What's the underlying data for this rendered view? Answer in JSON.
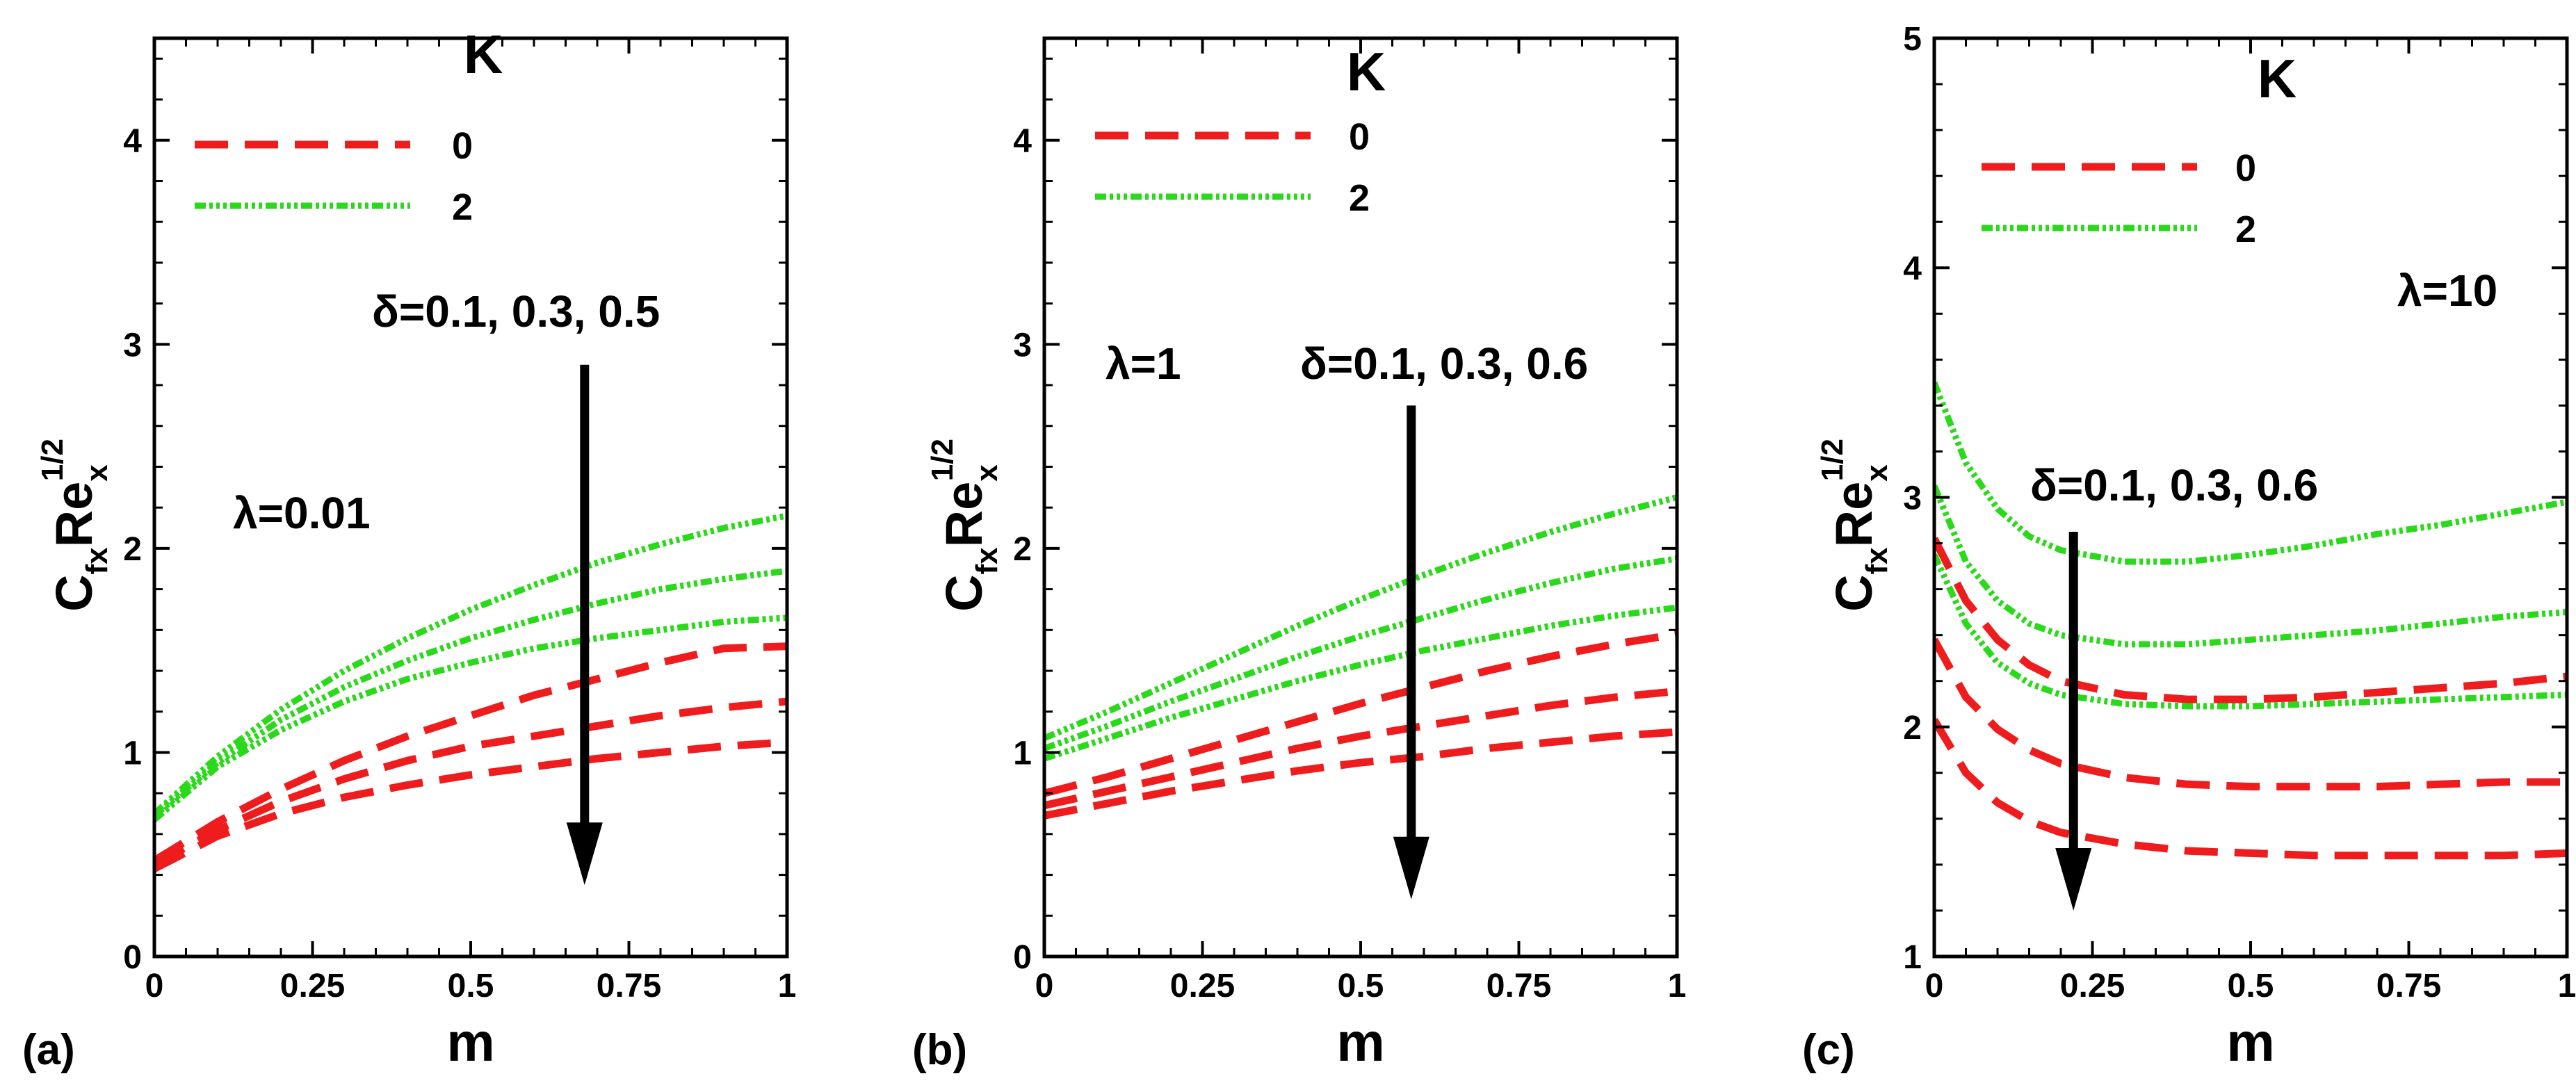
{
  "colors": {
    "red": "#ee1c1c",
    "green": "#2bd91b",
    "axis": "#000000"
  },
  "chart_data": [
    {
      "type": "line",
      "panel_label": "(a)",
      "xlabel": "m",
      "ylabel_main": "C",
      "ylabel_sub1": "fx",
      "ylabel_mid": "Re",
      "ylabel_sub2": "x",
      "ylabel_sup": "1/2",
      "xlim": [
        0,
        1
      ],
      "ylim": [
        0,
        4.5
      ],
      "x_ticks": [
        "0",
        "0.25",
        "0.5",
        "0.75",
        "1"
      ],
      "y_ticks": [
        "0",
        "1",
        "2",
        "3",
        "4"
      ],
      "legend": {
        "title": "K",
        "entries": [
          "0",
          "2"
        ]
      },
      "annotations": {
        "param": "λ=0.01",
        "delta": "δ=0.1, 0.3, 0.5"
      },
      "arrow": {
        "x": 0.68,
        "y_from": 2.9,
        "y_to": 0.35
      },
      "series": [
        {
          "name": "K=0, δ=0.1",
          "style": "red",
          "x": [
            0,
            0.1,
            0.2,
            0.3,
            0.4,
            0.5,
            0.6,
            0.7,
            0.8,
            0.9,
            1
          ],
          "y": [
            0.47,
            0.66,
            0.82,
            0.96,
            1.08,
            1.18,
            1.28,
            1.36,
            1.44,
            1.51,
            1.52
          ]
        },
        {
          "name": "K=0, δ=0.3",
          "style": "red",
          "x": [
            0,
            0.1,
            0.2,
            0.3,
            0.4,
            0.5,
            0.6,
            0.7,
            0.8,
            0.9,
            1
          ],
          "y": [
            0.45,
            0.62,
            0.76,
            0.87,
            0.96,
            1.03,
            1.08,
            1.13,
            1.18,
            1.22,
            1.25
          ]
        },
        {
          "name": "K=0, δ=0.5",
          "style": "red",
          "x": [
            0,
            0.1,
            0.2,
            0.3,
            0.4,
            0.5,
            0.6,
            0.7,
            0.8,
            0.9,
            1
          ],
          "y": [
            0.43,
            0.59,
            0.7,
            0.78,
            0.84,
            0.89,
            0.93,
            0.97,
            1.0,
            1.03,
            1.05
          ]
        },
        {
          "name": "K=2, δ=0.1",
          "style": "green",
          "x": [
            0,
            0.1,
            0.2,
            0.3,
            0.4,
            0.5,
            0.6,
            0.7,
            0.8,
            0.9,
            1
          ],
          "y": [
            0.7,
            0.98,
            1.21,
            1.4,
            1.56,
            1.7,
            1.82,
            1.93,
            2.02,
            2.1,
            2.16
          ]
        },
        {
          "name": "K=2, δ=0.3",
          "style": "green",
          "x": [
            0,
            0.1,
            0.2,
            0.3,
            0.4,
            0.5,
            0.6,
            0.7,
            0.8,
            0.9,
            1
          ],
          "y": [
            0.69,
            0.95,
            1.16,
            1.32,
            1.45,
            1.56,
            1.65,
            1.73,
            1.8,
            1.85,
            1.89
          ]
        },
        {
          "name": "K=2, δ=0.5",
          "style": "green",
          "x": [
            0,
            0.1,
            0.2,
            0.3,
            0.4,
            0.5,
            0.6,
            0.7,
            0.8,
            0.9,
            1
          ],
          "y": [
            0.67,
            0.93,
            1.11,
            1.25,
            1.36,
            1.44,
            1.51,
            1.56,
            1.6,
            1.64,
            1.66
          ]
        }
      ]
    },
    {
      "type": "line",
      "panel_label": "(b)",
      "xlabel": "m",
      "ylabel_main": "C",
      "ylabel_sub1": "fx",
      "ylabel_mid": "Re",
      "ylabel_sub2": "x",
      "ylabel_sup": "1/2",
      "xlim": [
        0,
        1
      ],
      "ylim": [
        0,
        4.5
      ],
      "x_ticks": [
        "0",
        "0.25",
        "0.5",
        "0.75",
        "1"
      ],
      "y_ticks": [
        "0",
        "1",
        "2",
        "3",
        "4"
      ],
      "legend": {
        "title": "K",
        "entries": [
          "0",
          "2"
        ]
      },
      "annotations": {
        "param": "λ=1",
        "delta": "δ=0.1, 0.3, 0.6"
      },
      "arrow": {
        "x": 0.58,
        "y_from": 2.7,
        "y_to": 0.28
      },
      "series": [
        {
          "name": "K=0, δ=0.1",
          "style": "red",
          "x": [
            0,
            0.1,
            0.2,
            0.3,
            0.4,
            0.5,
            0.6,
            0.7,
            0.8,
            0.9,
            1
          ],
          "y": [
            0.8,
            0.88,
            0.97,
            1.06,
            1.15,
            1.24,
            1.32,
            1.4,
            1.47,
            1.53,
            1.58
          ]
        },
        {
          "name": "K=0, δ=0.3",
          "style": "red",
          "x": [
            0,
            0.1,
            0.2,
            0.3,
            0.4,
            0.5,
            0.6,
            0.7,
            0.8,
            0.9,
            1
          ],
          "y": [
            0.74,
            0.81,
            0.88,
            0.95,
            1.02,
            1.08,
            1.13,
            1.18,
            1.23,
            1.27,
            1.3
          ]
        },
        {
          "name": "K=0, δ=0.6",
          "style": "red",
          "x": [
            0,
            0.1,
            0.2,
            0.3,
            0.4,
            0.5,
            0.6,
            0.7,
            0.8,
            0.9,
            1
          ],
          "y": [
            0.69,
            0.75,
            0.81,
            0.86,
            0.91,
            0.95,
            0.98,
            1.02,
            1.05,
            1.08,
            1.1
          ]
        },
        {
          "name": "K=2, δ=0.1",
          "style": "green",
          "x": [
            0,
            0.1,
            0.2,
            0.3,
            0.4,
            0.5,
            0.6,
            0.7,
            0.8,
            0.9,
            1
          ],
          "y": [
            1.07,
            1.2,
            1.34,
            1.48,
            1.62,
            1.75,
            1.87,
            1.98,
            2.08,
            2.17,
            2.25
          ]
        },
        {
          "name": "K=2, δ=0.3",
          "style": "green",
          "x": [
            0,
            0.1,
            0.2,
            0.3,
            0.4,
            0.5,
            0.6,
            0.7,
            0.8,
            0.9,
            1
          ],
          "y": [
            1.02,
            1.13,
            1.25,
            1.36,
            1.47,
            1.57,
            1.66,
            1.75,
            1.83,
            1.9,
            1.95
          ]
        },
        {
          "name": "K=2, δ=0.6",
          "style": "green",
          "x": [
            0,
            0.1,
            0.2,
            0.3,
            0.4,
            0.5,
            0.6,
            0.7,
            0.8,
            0.9,
            1
          ],
          "y": [
            0.97,
            1.07,
            1.17,
            1.26,
            1.35,
            1.43,
            1.5,
            1.56,
            1.62,
            1.67,
            1.71
          ]
        }
      ]
    },
    {
      "type": "line",
      "panel_label": "(c)",
      "xlabel": "m",
      "ylabel_main": "C",
      "ylabel_sub1": "fx",
      "ylabel_mid": "Re",
      "ylabel_sub2": "x",
      "ylabel_sup": "1/2",
      "xlim": [
        0,
        1
      ],
      "ylim": [
        1,
        5
      ],
      "x_ticks": [
        "0",
        "0.25",
        "0.5",
        "0.75",
        "1"
      ],
      "y_ticks": [
        "1",
        "2",
        "3",
        "4",
        "5"
      ],
      "legend": {
        "title": "K",
        "entries": [
          "0",
          "2"
        ]
      },
      "annotations": {
        "param": "λ=10",
        "delta": "δ=0.1, 0.3, 0.6"
      },
      "arrow": {
        "x": 0.22,
        "y_from": 2.85,
        "y_to": 1.2
      },
      "series": [
        {
          "name": "K=0, δ=0.1",
          "style": "red",
          "x": [
            0,
            0.05,
            0.1,
            0.15,
            0.2,
            0.3,
            0.4,
            0.5,
            0.6,
            0.7,
            0.8,
            0.9,
            1
          ],
          "y": [
            2.82,
            2.55,
            2.38,
            2.27,
            2.2,
            2.14,
            2.12,
            2.12,
            2.13,
            2.15,
            2.17,
            2.19,
            2.22
          ]
        },
        {
          "name": "K=0, δ=0.3",
          "style": "red",
          "x": [
            0,
            0.05,
            0.1,
            0.15,
            0.2,
            0.3,
            0.4,
            0.5,
            0.6,
            0.7,
            0.8,
            0.9,
            1
          ],
          "y": [
            2.38,
            2.13,
            1.99,
            1.9,
            1.84,
            1.78,
            1.75,
            1.74,
            1.74,
            1.74,
            1.75,
            1.76,
            1.76
          ]
        },
        {
          "name": "K=0, δ=0.6",
          "style": "red",
          "x": [
            0,
            0.05,
            0.1,
            0.15,
            0.2,
            0.3,
            0.4,
            0.5,
            0.6,
            0.7,
            0.8,
            0.9,
            1
          ],
          "y": [
            2.03,
            1.8,
            1.67,
            1.59,
            1.54,
            1.49,
            1.46,
            1.45,
            1.44,
            1.44,
            1.44,
            1.44,
            1.45
          ]
        },
        {
          "name": "K=2, δ=0.1",
          "style": "green",
          "x": [
            0,
            0.05,
            0.1,
            0.15,
            0.2,
            0.3,
            0.4,
            0.5,
            0.6,
            0.7,
            0.8,
            0.9,
            1
          ],
          "y": [
            3.5,
            3.15,
            2.95,
            2.83,
            2.77,
            2.72,
            2.72,
            2.75,
            2.79,
            2.84,
            2.88,
            2.93,
            2.98
          ]
        },
        {
          "name": "K=2, δ=0.3",
          "style": "green",
          "x": [
            0,
            0.05,
            0.1,
            0.15,
            0.2,
            0.3,
            0.4,
            0.5,
            0.6,
            0.7,
            0.8,
            0.9,
            1
          ],
          "y": [
            3.05,
            2.72,
            2.55,
            2.45,
            2.4,
            2.36,
            2.36,
            2.38,
            2.4,
            2.42,
            2.45,
            2.48,
            2.5
          ]
        },
        {
          "name": "K=2, δ=0.6",
          "style": "green",
          "x": [
            0,
            0.05,
            0.1,
            0.15,
            0.2,
            0.3,
            0.4,
            0.5,
            0.6,
            0.7,
            0.8,
            0.9,
            1
          ],
          "y": [
            2.75,
            2.45,
            2.28,
            2.19,
            2.14,
            2.1,
            2.09,
            2.09,
            2.1,
            2.11,
            2.12,
            2.13,
            2.14
          ]
        }
      ]
    }
  ]
}
